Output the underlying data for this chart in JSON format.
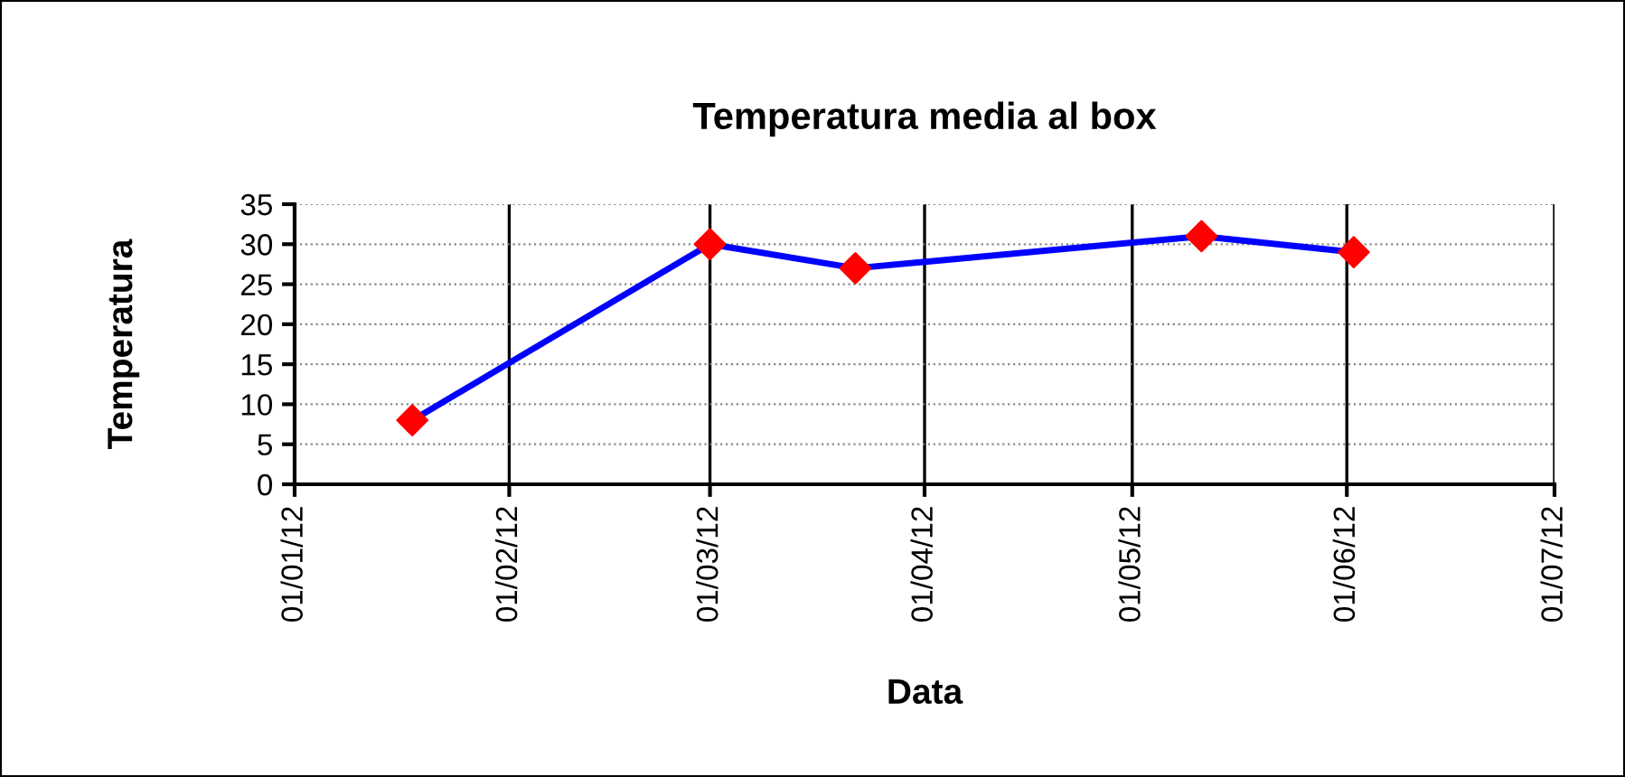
{
  "chart_data": {
    "type": "line",
    "title": "Temperatura media al box",
    "xlabel": "Data",
    "ylabel": "Temperatura",
    "x": [
      "2012-01-18",
      "2012-03-01",
      "2012-03-22",
      "2012-05-11",
      "2012-06-02"
    ],
    "series": [
      {
        "color": "#0000ff",
        "values": [
          8,
          30,
          27,
          31,
          29
        ],
        "colors": [
          "#ff0000",
          "#ff0000",
          "#ff0000",
          "#ff0000",
          "#ff0000"
        ]
      }
    ],
    "marker": "diamond",
    "line_style": "solid",
    "xlim": [
      "2012-01-01",
      "2012-07-01"
    ],
    "xticks": [
      {
        "value": "2012-01-01",
        "label": "01/01/12"
      },
      {
        "value": "2012-02-01",
        "label": "01/02/12"
      },
      {
        "value": "2012-03-01",
        "label": "01/03/12"
      },
      {
        "value": "2012-04-01",
        "label": "01/04/12"
      },
      {
        "value": "2012-05-01",
        "label": "01/05/12"
      },
      {
        "value": "2012-06-01",
        "label": "01/06/12"
      },
      {
        "value": "2012-07-01",
        "label": "01/07/12"
      }
    ],
    "ylim": [
      0,
      35
    ],
    "yticks": [
      0,
      5,
      10,
      15,
      20,
      25,
      30,
      35
    ],
    "grid": true,
    "legend": false
  }
}
